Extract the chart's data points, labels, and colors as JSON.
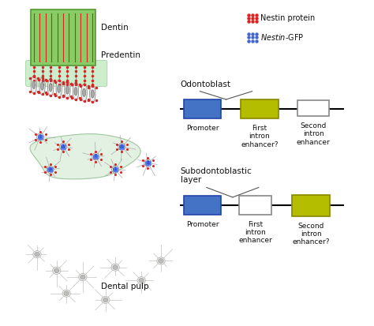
{
  "background_color": "#ffffff",
  "promoter_color": "#4472c4",
  "active_enhancer_color": "#b5bd00",
  "inactive_box_color": "#ffffff",
  "inactive_box_edge": "#888888",
  "active_box_edge": "#888800",
  "promoter_edge": "#2244aa",
  "line_color": "#111111",
  "red_dot_color": "#dd2222",
  "blue_dot_color": "#4466cc",
  "dentin_green_face": "#88cc66",
  "dentin_green_edge": "#559933",
  "cell_face": "#e8eee8",
  "cell_edge": "#888888",
  "nucleus_face": "#aaaaaa",
  "nucleus_edge": "#666666",
  "blue_nucleus_face": "#3355cc",
  "blue_nucleus_edge": "#1133aa",
  "subodonto_face": "#ddeedd",
  "subodonto_edge": "#88bb88",
  "pulp_face": "#f5f5f0",
  "pulp_edge": "#aaaaaa",
  "pulp_nucleus": "#bbbbbb",
  "text_color": "#111111",
  "legend_line_color": "#888888",
  "odontoblast_label": "Odontoblast",
  "subodontoblastic_label": "Subodontoblastic\nlayer",
  "dentin_label": "Dentin",
  "predentin_label": "Predentin",
  "dental_pulp_label": "Dental pulp",
  "promoter_label": "Promoter",
  "first_intron_label_active": "First\nintron\nenhancer?",
  "first_intron_label_inactive": "First\nintron\nenhancer",
  "second_intron_label_inactive": "Second\nintron\nenhancer",
  "second_intron_label_active": "Second\nintron\nenhancer?",
  "nestin_protein_label": "Nestin protein",
  "nestin_gfp_label": "Nestin-GFP",
  "fig_width": 4.74,
  "fig_height": 4.13,
  "dpi": 100
}
